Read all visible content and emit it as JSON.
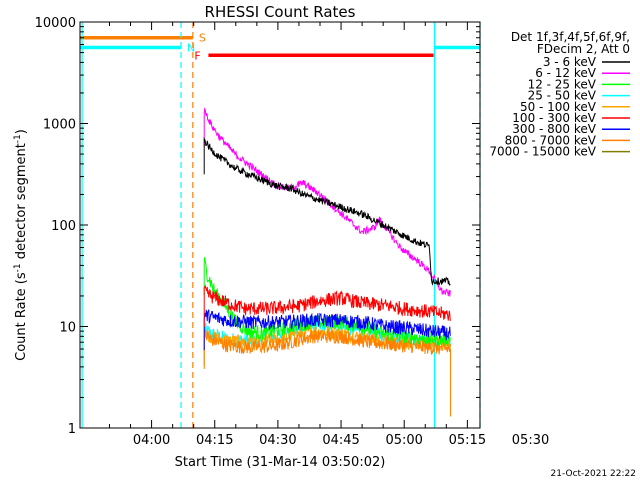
{
  "chart_data": {
    "type": "line",
    "title": "RHESSI Count Rates",
    "xlabel": "Start Time (31-Mar-14 03:50:02)",
    "ylabel": "Count Rate (s^-1 detector segment^-1)",
    "ylabel_parts": {
      "pre": "Count Rate (s",
      "sup1": "-1",
      "mid": " detector segment",
      "sup2": "-1",
      "post": ")"
    },
    "y_scale": "log",
    "ylim": [
      1,
      10000
    ],
    "xlim_minutes": [
      -17,
      78
    ],
    "x_ticks": [
      {
        "label": "04:00",
        "minutes": 0
      },
      {
        "label": "04:15",
        "minutes": 15
      },
      {
        "label": "04:30",
        "minutes": 30
      },
      {
        "label": "04:45",
        "minutes": 45
      },
      {
        "label": "05:00",
        "minutes": 60
      },
      {
        "label": "05:15",
        "minutes": 75
      },
      {
        "label": "05:30",
        "minutes": 90
      }
    ],
    "y_ticks": [
      {
        "label": "1",
        "value": 1
      },
      {
        "label": "10",
        "value": 10
      },
      {
        "label": "100",
        "value": 100
      },
      {
        "label": "1000",
        "value": 1000
      },
      {
        "label": "10000",
        "value": 10000
      }
    ],
    "legend_header": [
      "Det 1f,3f,4f,5f,6f,9f,",
      "FDecim 2, Att 0"
    ],
    "series": [
      {
        "name": "3 - 6 keV",
        "color": "#000000",
        "points": [
          [
            12.5,
            700
          ],
          [
            13,
            640
          ],
          [
            14,
            560
          ],
          [
            16,
            470
          ],
          [
            20,
            360
          ],
          [
            25,
            290
          ],
          [
            30,
            240
          ],
          [
            33,
            230
          ],
          [
            36,
            200
          ],
          [
            40,
            175
          ],
          [
            45,
            150
          ],
          [
            50,
            128
          ],
          [
            55,
            100
          ],
          [
            60,
            78
          ],
          [
            63,
            68
          ],
          [
            66,
            62
          ],
          [
            66.5,
            28
          ],
          [
            70,
            28
          ],
          [
            71,
            27
          ]
        ]
      },
      {
        "name": "6 - 12 keV",
        "color": "#ff00ff",
        "points": [
          [
            12.5,
            1330
          ],
          [
            13,
            1250
          ],
          [
            14,
            1000
          ],
          [
            16,
            750
          ],
          [
            20,
            490
          ],
          [
            25,
            340
          ],
          [
            30,
            240
          ],
          [
            33,
            230
          ],
          [
            36,
            260
          ],
          [
            40,
            200
          ],
          [
            45,
            130
          ],
          [
            50,
            85
          ],
          [
            53,
            95
          ],
          [
            54,
            115
          ],
          [
            56,
            90
          ],
          [
            58,
            68
          ],
          [
            60,
            55
          ],
          [
            63,
            45
          ],
          [
            66,
            35
          ],
          [
            67,
            30
          ],
          [
            69,
            22
          ],
          [
            71,
            21
          ]
        ]
      },
      {
        "name": "12 - 25 keV",
        "color": "#00ff00",
        "points": [
          [
            12.5,
            45
          ],
          [
            13,
            35
          ],
          [
            15,
            22
          ],
          [
            18,
            15
          ],
          [
            20,
            11
          ],
          [
            23,
            9
          ],
          [
            27,
            8.5
          ],
          [
            33,
            10
          ],
          [
            38,
            11
          ],
          [
            45,
            11
          ],
          [
            50,
            10
          ],
          [
            55,
            8.5
          ],
          [
            60,
            8
          ],
          [
            66,
            7.5
          ],
          [
            70,
            7.5
          ],
          [
            71,
            7.5
          ]
        ]
      },
      {
        "name": "25 - 50 keV",
        "color": "#00ffff",
        "points": [
          [
            12.5,
            9.5
          ],
          [
            14,
            8.5
          ],
          [
            18,
            7.5
          ],
          [
            24,
            7.2
          ],
          [
            30,
            8
          ],
          [
            38,
            10
          ],
          [
            45,
            10
          ],
          [
            50,
            9
          ],
          [
            56,
            8
          ],
          [
            62,
            7.5
          ],
          [
            66,
            7.2
          ],
          [
            71,
            7
          ]
        ]
      },
      {
        "name": "50 - 100 keV",
        "color": "#ffa500",
        "points": [
          [
            12.5,
            9
          ],
          [
            14,
            8
          ],
          [
            18,
            7.2
          ],
          [
            24,
            7
          ],
          [
            30,
            7.5
          ],
          [
            38,
            9
          ],
          [
            45,
            8.5
          ],
          [
            52,
            7.5
          ],
          [
            60,
            7
          ],
          [
            66,
            6.8
          ],
          [
            71,
            6.5
          ]
        ]
      },
      {
        "name": "100 - 300 keV",
        "color": "#ff0000",
        "points": [
          [
            12.5,
            22
          ],
          [
            14,
            20
          ],
          [
            18,
            17
          ],
          [
            22,
            15
          ],
          [
            28,
            15
          ],
          [
            35,
            16
          ],
          [
            40,
            18
          ],
          [
            45,
            19
          ],
          [
            50,
            17
          ],
          [
            56,
            16
          ],
          [
            60,
            15
          ],
          [
            66,
            14
          ],
          [
            71,
            13
          ]
        ]
      },
      {
        "name": "300 - 800 keV",
        "color": "#0000ff",
        "points": [
          [
            12.5,
            13
          ],
          [
            14,
            12.5
          ],
          [
            18,
            11.5
          ],
          [
            24,
            11
          ],
          [
            30,
            11
          ],
          [
            38,
            11.5
          ],
          [
            45,
            11.5
          ],
          [
            50,
            11
          ],
          [
            56,
            10
          ],
          [
            62,
            9.5
          ],
          [
            66,
            9
          ],
          [
            71,
            8.5
          ]
        ]
      },
      {
        "name": "800 - 7000 keV",
        "color": "#ff8000",
        "points": [
          [
            12.5,
            8.5
          ],
          [
            14,
            7.5
          ],
          [
            18,
            6.5
          ],
          [
            24,
            6.2
          ],
          [
            30,
            6.5
          ],
          [
            38,
            8
          ],
          [
            45,
            8
          ],
          [
            52,
            7
          ],
          [
            60,
            6.5
          ],
          [
            66,
            6.2
          ],
          [
            71,
            6
          ]
        ]
      },
      {
        "name": "7000 - 15000 keV",
        "color": "#808000",
        "points": []
      }
    ],
    "flag_bars": [
      {
        "label": "S",
        "color": "#ff8000",
        "y": 7000,
        "segments": [
          [
            -17,
            9.8
          ]
        ]
      },
      {
        "label": "N",
        "color": "#00ffff",
        "y": 5600,
        "segments": [
          [
            -17,
            7
          ],
          [
            67.2,
            78
          ]
        ]
      },
      {
        "label": "F",
        "color": "#ff0000",
        "y": 4700,
        "segments": [
          [
            13.5,
            67
          ]
        ]
      }
    ],
    "vertical_lines": [
      {
        "minutes": -16.5,
        "color": "#00ffff",
        "style": "solid"
      },
      {
        "minutes": 7,
        "color": "#00ffff",
        "style": "dashed"
      },
      {
        "minutes": 9.8,
        "color": "#ff8000",
        "style": "dashed"
      },
      {
        "minutes": 67.2,
        "color": "#00ffff",
        "style": "solid"
      },
      {
        "minutes": 78,
        "color": "#00ffff",
        "style": "dashed"
      }
    ],
    "footer_date": "21-Oct-2021 22:22"
  }
}
